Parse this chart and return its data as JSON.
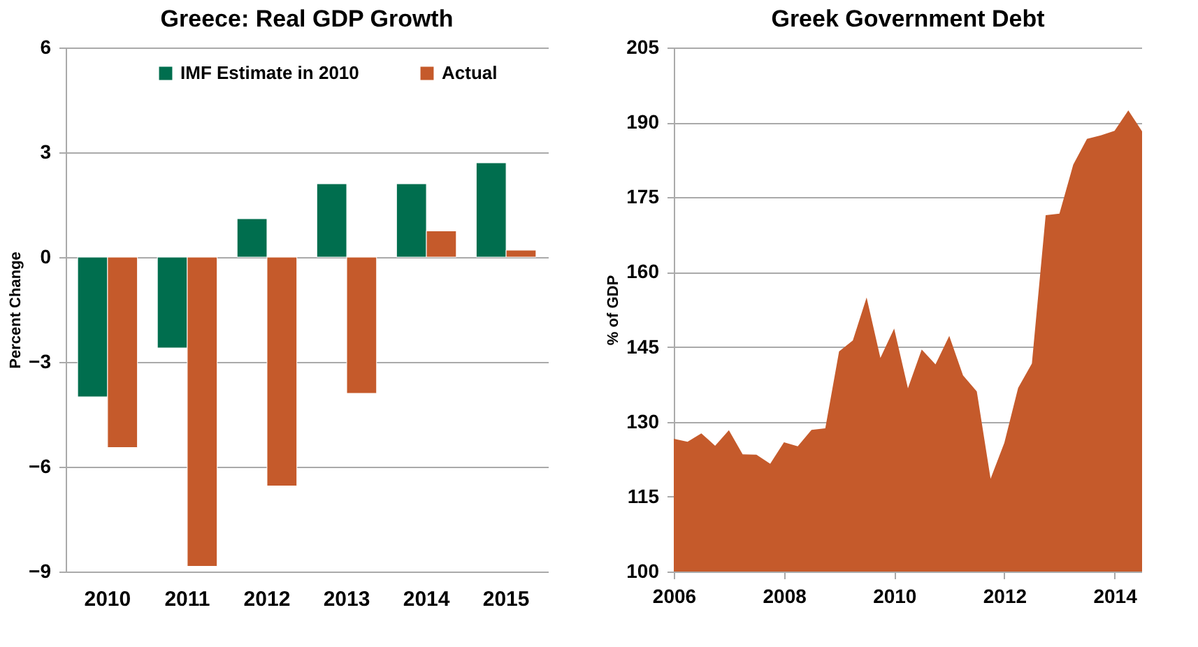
{
  "chart_data": [
    {
      "type": "bar",
      "title": "Greece: Real GDP Growth",
      "ylabel": "Percent Change",
      "categories": [
        "2010",
        "2011",
        "2012",
        "2013",
        "2014",
        "2015"
      ],
      "series": [
        {
          "name": "IMF Estimate in 2010",
          "color": "#006e4e",
          "values": [
            -4.0,
            -2.6,
            1.1,
            2.1,
            2.1,
            2.7
          ]
        },
        {
          "name": "Actual",
          "color": "#c55a2b",
          "values": [
            -5.45,
            -8.85,
            -6.55,
            -3.9,
            0.75,
            0.2
          ]
        }
      ],
      "ylim": [
        -9,
        6
      ],
      "yticks": [
        -9,
        -6,
        -3,
        0,
        3,
        6
      ],
      "grid": "y",
      "legend": "top"
    },
    {
      "type": "area",
      "title": "Greek Government Debt",
      "ylabel": "% of GDP",
      "x": [
        2006,
        2006.25,
        2006.5,
        2006.75,
        2007,
        2007.25,
        2007.5,
        2007.75,
        2008,
        2008.25,
        2008.5,
        2008.75,
        2009,
        2009.25,
        2009.5,
        2009.75,
        2010,
        2010.25,
        2010.5,
        2010.75,
        2011,
        2011.25,
        2011.5,
        2011.75,
        2012,
        2012.25,
        2012.5,
        2012.75,
        2013,
        2013.25,
        2013.5,
        2013.75,
        2014,
        2014.25,
        2014.5
      ],
      "series": [
        {
          "color": "#c55a2b",
          "values": [
            126.6,
            126.0,
            127.7,
            125.2,
            128.3,
            123.5,
            123.4,
            121.6,
            125.9,
            125.1,
            128.4,
            128.7,
            144.1,
            146.3,
            154.9,
            142.8,
            148.7,
            136.7,
            144.5,
            141.5,
            147.2,
            139.3,
            136.1,
            118.6,
            125.8,
            136.8,
            141.7,
            171.4,
            171.7,
            181.5,
            186.7,
            187.4,
            188.3,
            192.4,
            188.2
          ]
        }
      ],
      "xlim": [
        2006,
        2014.5
      ],
      "xticks": [
        2006,
        2008,
        2010,
        2012,
        2014
      ],
      "ylim": [
        100,
        205
      ],
      "yticks": [
        100,
        115,
        130,
        145,
        160,
        175,
        190,
        205
      ],
      "grid": "y"
    }
  ]
}
